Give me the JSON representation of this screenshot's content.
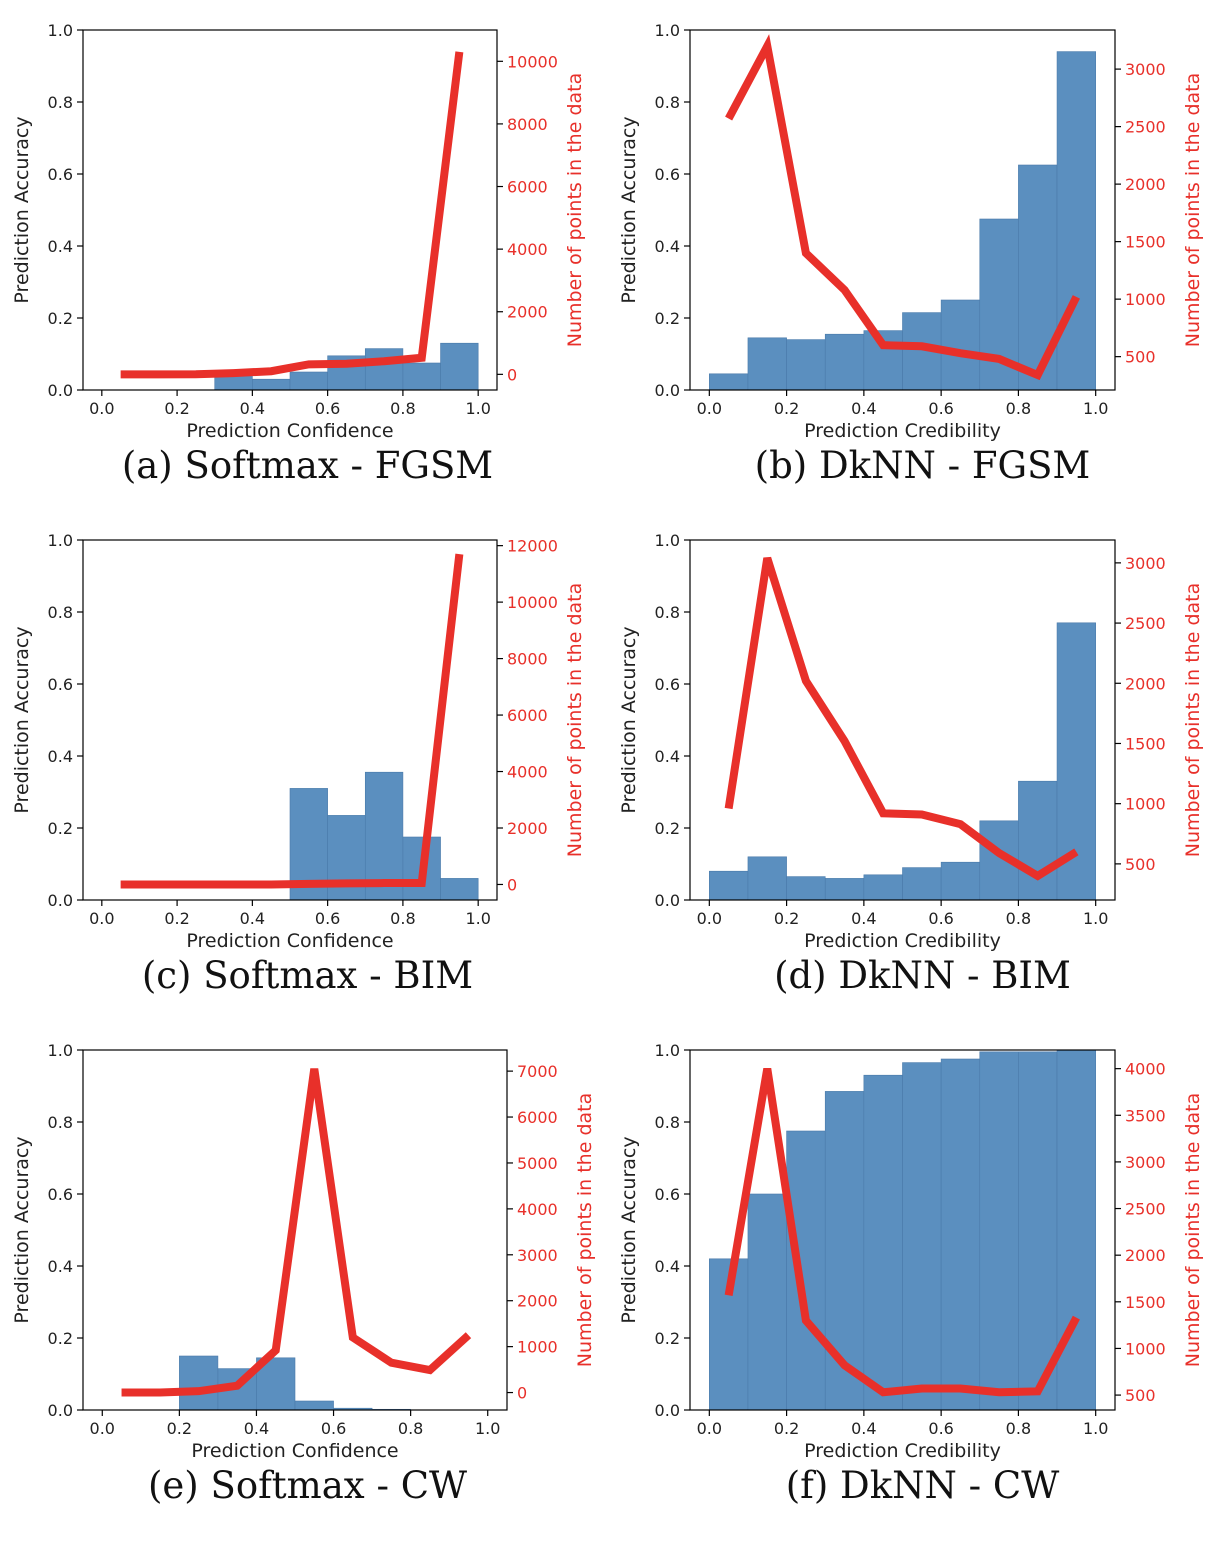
{
  "colors": {
    "bar": "#5b8fbf",
    "bar_edge": "#4a7aaa",
    "line": "#e8302a",
    "axis": "#000000"
  },
  "charts": [
    {
      "caption": "(a) Softmax - FGSM",
      "chart_data": {
        "type": "bar",
        "xlabel": "Prediction Confidence",
        "ylabel": "Prediction Accuracy",
        "ylabel_right": "Number of points in the data",
        "xlim": [
          0,
          1
        ],
        "ylim": [
          0,
          1
        ],
        "xticks": [
          "0.0",
          "0.2",
          "0.4",
          "0.6",
          "0.8",
          "1.0"
        ],
        "yticks": [
          "0.0",
          "0.2",
          "0.4",
          "0.6",
          "0.8",
          "1.0"
        ],
        "y2ticks": [
          0,
          2000,
          4000,
          6000,
          8000,
          10000
        ],
        "y2lim": [
          -500,
          11000
        ],
        "bins": [
          [
            0.3,
            0.4
          ],
          [
            0.4,
            0.5
          ],
          [
            0.5,
            0.6
          ],
          [
            0.6,
            0.7
          ],
          [
            0.7,
            0.8
          ],
          [
            0.8,
            0.9
          ],
          [
            0.9,
            1.0
          ]
        ],
        "accuracy": [
          0.04,
          0.03,
          0.05,
          0.095,
          0.115,
          0.075,
          0.13
        ],
        "count_x": [
          0.05,
          0.15,
          0.25,
          0.35,
          0.45,
          0.55,
          0.65,
          0.75,
          0.85,
          0.95
        ],
        "counts": [
          0,
          0,
          5,
          40,
          100,
          320,
          340,
          420,
          530,
          10300
        ]
      }
    },
    {
      "caption": "(b) DkNN - FGSM",
      "chart_data": {
        "type": "bar",
        "xlabel": "Prediction Credibility",
        "ylabel": "Prediction Accuracy",
        "ylabel_right": "Number of points in the data",
        "xlim": [
          0,
          1
        ],
        "ylim": [
          0,
          1
        ],
        "xticks": [
          "0.0",
          "0.2",
          "0.4",
          "0.6",
          "0.8",
          "1.0"
        ],
        "yticks": [
          "0.0",
          "0.2",
          "0.4",
          "0.6",
          "0.8",
          "1.0"
        ],
        "y2ticks": [
          500,
          1000,
          1500,
          2000,
          2500,
          3000
        ],
        "y2lim": [
          210,
          3340
        ],
        "bins": [
          [
            0.0,
            0.1
          ],
          [
            0.1,
            0.2
          ],
          [
            0.2,
            0.3
          ],
          [
            0.3,
            0.4
          ],
          [
            0.4,
            0.5
          ],
          [
            0.5,
            0.6
          ],
          [
            0.6,
            0.7
          ],
          [
            0.7,
            0.8
          ],
          [
            0.8,
            0.9
          ],
          [
            0.9,
            1.0
          ]
        ],
        "accuracy": [
          0.045,
          0.145,
          0.14,
          0.155,
          0.165,
          0.215,
          0.25,
          0.475,
          0.625,
          0.94
        ],
        "count_x": [
          0.05,
          0.15,
          0.25,
          0.35,
          0.45,
          0.55,
          0.65,
          0.75,
          0.85,
          0.95
        ],
        "counts": [
          2570,
          3200,
          1400,
          1080,
          600,
          590,
          530,
          480,
          340,
          1020
        ]
      }
    },
    {
      "caption": "(c) Softmax - BIM",
      "chart_data": {
        "type": "bar",
        "xlabel": "Prediction Confidence",
        "ylabel": "Prediction Accuracy",
        "ylabel_right": "Number of points in the data",
        "xlim": [
          0,
          1
        ],
        "ylim": [
          0,
          1
        ],
        "xticks": [
          "0.0",
          "0.2",
          "0.4",
          "0.6",
          "0.8",
          "1.0"
        ],
        "yticks": [
          "0.0",
          "0.2",
          "0.4",
          "0.6",
          "0.8",
          "1.0"
        ],
        "y2ticks": [
          0,
          2000,
          4000,
          6000,
          8000,
          10000,
          12000
        ],
        "y2lim": [
          -550,
          12200
        ],
        "bins": [
          [
            0.5,
            0.6
          ],
          [
            0.6,
            0.7
          ],
          [
            0.7,
            0.8
          ],
          [
            0.8,
            0.9
          ],
          [
            0.9,
            1.0
          ]
        ],
        "accuracy": [
          0.31,
          0.235,
          0.355,
          0.175,
          0.06
        ],
        "count_x": [
          0.05,
          0.15,
          0.25,
          0.35,
          0.45,
          0.55,
          0.65,
          0.75,
          0.85,
          0.95
        ],
        "counts": [
          0,
          0,
          0,
          0,
          0,
          20,
          40,
          50,
          50,
          11700
        ]
      }
    },
    {
      "caption": "(d) DkNN - BIM",
      "chart_data": {
        "type": "bar",
        "xlabel": "Prediction Credibility",
        "ylabel": "Prediction Accuracy",
        "ylabel_right": "Number of points in the data",
        "xlim": [
          0,
          1
        ],
        "ylim": [
          0,
          1
        ],
        "xticks": [
          "0.0",
          "0.2",
          "0.4",
          "0.6",
          "0.8",
          "1.0"
        ],
        "yticks": [
          "0.0",
          "0.2",
          "0.4",
          "0.6",
          "0.8",
          "1.0"
        ],
        "y2ticks": [
          500,
          1000,
          1500,
          2000,
          2500,
          3000
        ],
        "y2lim": [
          200,
          3190
        ],
        "bins": [
          [
            0.0,
            0.1
          ],
          [
            0.1,
            0.2
          ],
          [
            0.2,
            0.3
          ],
          [
            0.3,
            0.4
          ],
          [
            0.4,
            0.5
          ],
          [
            0.5,
            0.6
          ],
          [
            0.6,
            0.7
          ],
          [
            0.7,
            0.8
          ],
          [
            0.8,
            0.9
          ],
          [
            0.9,
            1.0
          ]
        ],
        "accuracy": [
          0.08,
          0.12,
          0.065,
          0.06,
          0.07,
          0.09,
          0.105,
          0.22,
          0.33,
          0.77
        ],
        "count_x": [
          0.05,
          0.15,
          0.25,
          0.35,
          0.45,
          0.55,
          0.65,
          0.75,
          0.85,
          0.95
        ],
        "counts": [
          960,
          3040,
          2020,
          1520,
          920,
          910,
          830,
          590,
          400,
          600
        ]
      }
    },
    {
      "caption": "(e) Softmax - CW",
      "chart_data": {
        "type": "bar",
        "xlabel": "Prediction Confidence",
        "ylabel": "Prediction Accuracy",
        "ylabel_right": "Number of points in the data",
        "xlim": [
          0,
          1
        ],
        "ylim": [
          0,
          1
        ],
        "xticks": [
          "0.0",
          "0.2",
          "0.4",
          "0.6",
          "0.8",
          "1.0"
        ],
        "yticks": [
          "0.0",
          "0.2",
          "0.4",
          "0.6",
          "0.8",
          "1.0"
        ],
        "y2ticks": [
          0,
          1000,
          2000,
          3000,
          4000,
          5000,
          6000,
          7000
        ],
        "y2lim": [
          -380,
          7460
        ],
        "bins": [
          [
            0.2,
            0.3
          ],
          [
            0.3,
            0.4
          ],
          [
            0.4,
            0.5
          ],
          [
            0.5,
            0.6
          ],
          [
            0.6,
            0.7
          ],
          [
            0.7,
            0.8
          ]
        ],
        "accuracy": [
          0.15,
          0.115,
          0.145,
          0.025,
          0.005,
          0.002
        ],
        "count_x": [
          0.05,
          0.15,
          0.25,
          0.35,
          0.45,
          0.55,
          0.65,
          0.75,
          0.85,
          0.95
        ],
        "counts": [
          0,
          0,
          30,
          150,
          920,
          7050,
          1200,
          650,
          490,
          1250
        ]
      }
    },
    {
      "caption": "(f) DkNN - CW",
      "chart_data": {
        "type": "bar",
        "xlabel": "Prediction Credibility",
        "ylabel": "Prediction Accuracy",
        "ylabel_right": "Number of points in the data",
        "xlim": [
          0,
          1
        ],
        "ylim": [
          0,
          1
        ],
        "xticks": [
          "0.0",
          "0.2",
          "0.4",
          "0.6",
          "0.8",
          "1.0"
        ],
        "yticks": [
          "0.0",
          "0.2",
          "0.4",
          "0.6",
          "0.8",
          "1.0"
        ],
        "y2ticks": [
          500,
          1000,
          1500,
          2000,
          2500,
          3000,
          3500,
          4000
        ],
        "y2lim": [
          340,
          4200
        ],
        "bins": [
          [
            0.0,
            0.1
          ],
          [
            0.1,
            0.2
          ],
          [
            0.2,
            0.3
          ],
          [
            0.3,
            0.4
          ],
          [
            0.4,
            0.5
          ],
          [
            0.5,
            0.6
          ],
          [
            0.6,
            0.7
          ],
          [
            0.7,
            0.8
          ],
          [
            0.8,
            0.9
          ],
          [
            0.9,
            1.0
          ]
        ],
        "accuracy": [
          0.42,
          0.6,
          0.775,
          0.885,
          0.93,
          0.965,
          0.975,
          0.995,
          0.995,
          1.0
        ],
        "count_x": [
          0.05,
          0.15,
          0.25,
          0.35,
          0.45,
          0.55,
          0.65,
          0.75,
          0.85,
          0.95
        ],
        "counts": [
          1570,
          4000,
          1300,
          820,
          530,
          570,
          570,
          530,
          540,
          1330
        ]
      }
    }
  ]
}
